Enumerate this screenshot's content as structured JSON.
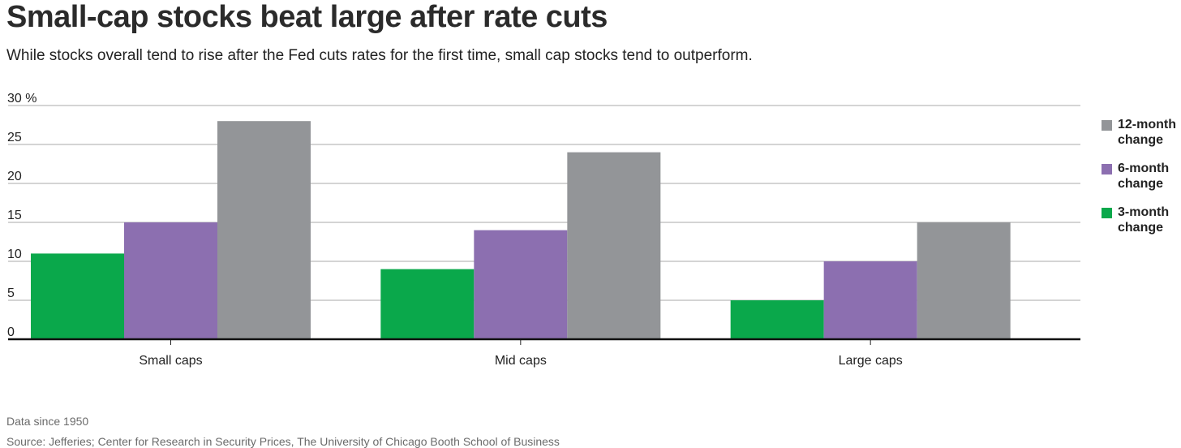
{
  "header": {
    "title": "Small-cap stocks beat large after rate cuts",
    "subtitle": "While stocks overall tend to rise after the Fed cuts rates for the first time, small cap stocks tend to outperform."
  },
  "footer": {
    "note": "Data since 1950",
    "source": "Source: Jefferies; Center for Research in Security Prices, The University of Chicago Booth School of Business"
  },
  "legend": [
    {
      "label": "12-month change",
      "color": "#939598"
    },
    {
      "label": "6-month change",
      "color": "#8c6fb0"
    },
    {
      "label": "3-month change",
      "color": "#0aa84b"
    }
  ],
  "chart_data": {
    "type": "bar",
    "categories": [
      "Small caps",
      "Mid caps",
      "Large caps"
    ],
    "series": [
      {
        "name": "3-month change",
        "values": [
          11,
          9,
          5
        ],
        "color": "#0aa84b"
      },
      {
        "name": "6-month change",
        "values": [
          15,
          14,
          10
        ],
        "color": "#8c6fb0"
      },
      {
        "name": "12-month change",
        "values": [
          28,
          24,
          15
        ],
        "color": "#939598"
      }
    ],
    "yticks": [
      "0",
      "5",
      "10",
      "15",
      "20",
      "25",
      "30 %"
    ],
    "ylim": [
      0,
      30
    ],
    "grid": true,
    "legend_position": "right"
  }
}
